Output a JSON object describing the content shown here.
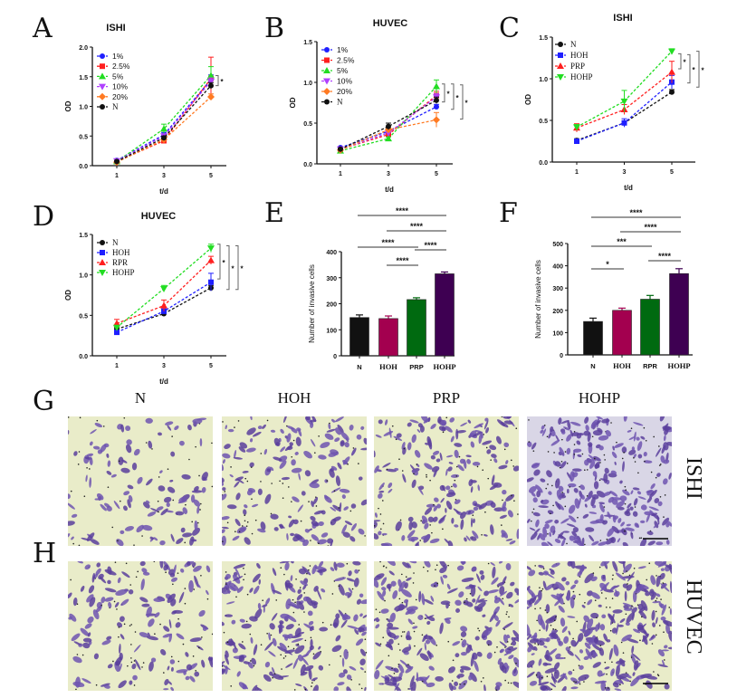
{
  "panels": {
    "A": "A",
    "B": "B",
    "C": "C",
    "D": "D",
    "E": "E",
    "F": "F",
    "G": "G",
    "H": "H"
  },
  "titles": {
    "A": "ISHI",
    "B": "HUVEC",
    "C": "ISHI",
    "D": "HUVEC"
  },
  "columns": [
    "N",
    "HOH",
    "PRP",
    "HOHP"
  ],
  "rows": [
    "ISHI",
    "HUVEC"
  ],
  "colors": {
    "blue": "#1f1fff",
    "red": "#ff1f1f",
    "green": "#22dd22",
    "violet": "#b040ff",
    "orange": "#ff7a22",
    "black": "#111111",
    "magenta": "#a3004f",
    "darkgreen": "#006a10",
    "purple": "#3e0052",
    "cellbg": "#e9ecc9",
    "stain": "#5b3f9c"
  },
  "chart_data": [
    {
      "id": "A",
      "type": "line",
      "title": "ISHI",
      "xlabel": "t/d",
      "ylabel": "OD",
      "ylim": [
        0,
        2.0
      ],
      "yticks": [
        "0.0",
        "0.5",
        "1.0",
        "1.5",
        "2.0"
      ],
      "x": [
        1,
        3,
        5
      ],
      "xticks": [
        "1",
        "3",
        "5"
      ],
      "legend": "top-left",
      "series": [
        {
          "name": "1%",
          "color": "#1f1fff",
          "marker": "circle",
          "values": [
            0.09,
            0.52,
            1.45
          ],
          "err": [
            0.02,
            0.04,
            0.08
          ]
        },
        {
          "name": "2.5%",
          "color": "#ff1f1f",
          "marker": "square",
          "values": [
            0.07,
            0.42,
            1.47
          ],
          "err": [
            0.01,
            0.03,
            0.36
          ]
        },
        {
          "name": "5%",
          "color": "#22dd22",
          "marker": "tri-up",
          "values": [
            0.07,
            0.62,
            1.52
          ],
          "err": [
            0.01,
            0.08,
            0.15
          ]
        },
        {
          "name": "10%",
          "color": "#b040ff",
          "marker": "tri-down",
          "values": [
            0.08,
            0.5,
            1.42
          ],
          "err": [
            0.01,
            0.03,
            0.06
          ]
        },
        {
          "name": "20%",
          "color": "#ff7a22",
          "marker": "diamond",
          "values": [
            0.06,
            0.44,
            1.16
          ],
          "err": [
            0.01,
            0.03,
            0.05
          ]
        },
        {
          "name": "N",
          "color": "#111111",
          "marker": "circle",
          "values": [
            0.07,
            0.47,
            1.35
          ],
          "err": [
            0.01,
            0.03,
            0.05
          ]
        }
      ],
      "annotations": [
        {
          "label": "*",
          "range": [
            1.35,
            1.52
          ]
        }
      ]
    },
    {
      "id": "B",
      "type": "line",
      "title": "HUVEC",
      "xlabel": "t/d",
      "ylabel": "OD",
      "ylim": [
        0,
        1.5
      ],
      "yticks": [
        "0.0",
        "0.5",
        "1.0",
        "1.5"
      ],
      "x": [
        1,
        3,
        5
      ],
      "xticks": [
        "1",
        "3",
        "5"
      ],
      "legend": "top-left",
      "series": [
        {
          "name": "1%",
          "color": "#1f1fff",
          "marker": "circle",
          "values": [
            0.2,
            0.4,
            0.7
          ],
          "err": [
            0.01,
            0.03,
            0.03
          ]
        },
        {
          "name": "2.5%",
          "color": "#ff1f1f",
          "marker": "square",
          "values": [
            0.18,
            0.36,
            0.84
          ],
          "err": [
            0.01,
            0.02,
            0.05
          ]
        },
        {
          "name": "5%",
          "color": "#22dd22",
          "marker": "tri-up",
          "values": [
            0.16,
            0.31,
            0.95
          ],
          "err": [
            0.01,
            0.02,
            0.08
          ]
        },
        {
          "name": "10%",
          "color": "#b040ff",
          "marker": "tri-down",
          "values": [
            0.18,
            0.38,
            0.82
          ],
          "err": [
            0.01,
            0.02,
            0.04
          ]
        },
        {
          "name": "20%",
          "color": "#ff7a22",
          "marker": "diamond",
          "values": [
            0.17,
            0.42,
            0.54
          ],
          "err": [
            0.01,
            0.02,
            0.09
          ]
        },
        {
          "name": "N",
          "color": "#111111",
          "marker": "circle",
          "values": [
            0.18,
            0.46,
            0.78
          ],
          "err": [
            0.01,
            0.04,
            0.04
          ]
        }
      ],
      "annotations": [
        {
          "label": "*",
          "range": [
            0.76,
            0.98
          ]
        },
        {
          "label": "*",
          "range": [
            0.67,
            0.98
          ]
        },
        {
          "label": "*",
          "range": [
            0.55,
            0.97
          ]
        }
      ]
    },
    {
      "id": "C",
      "type": "line",
      "title": "ISHI",
      "xlabel": "t/d",
      "ylabel": "OD",
      "ylim": [
        0,
        1.5
      ],
      "yticks": [
        "0.0",
        "0.5",
        "1.0",
        "1.5"
      ],
      "x": [
        1,
        3,
        5
      ],
      "xticks": [
        "1",
        "3",
        "5"
      ],
      "legend": "top-left",
      "series": [
        {
          "name": "N",
          "color": "#111111",
          "marker": "circle",
          "values": [
            0.26,
            0.47,
            0.84
          ],
          "err": [
            0.02,
            0.02,
            0.03
          ]
        },
        {
          "name": "HOH",
          "color": "#1f1fff",
          "marker": "square",
          "values": [
            0.25,
            0.47,
            0.96
          ],
          "err": [
            0.02,
            0.05,
            0.08
          ]
        },
        {
          "name": "PRP",
          "color": "#ff1f1f",
          "marker": "tri-up",
          "values": [
            0.41,
            0.63,
            1.08
          ],
          "err": [
            0.05,
            0.06,
            0.13
          ]
        },
        {
          "name": "HOHP",
          "color": "#22dd22",
          "marker": "tri-down",
          "values": [
            0.42,
            0.73,
            1.33
          ],
          "err": [
            0.03,
            0.13,
            0.03
          ]
        }
      ],
      "annotations": [
        {
          "label": "*",
          "range": [
            1.12,
            1.3
          ]
        },
        {
          "label": "*",
          "range": [
            0.95,
            1.29
          ]
        },
        {
          "label": "*",
          "range": [
            0.9,
            1.33
          ]
        }
      ]
    },
    {
      "id": "D",
      "type": "line",
      "title": "HUVEC",
      "xlabel": "t/d",
      "ylabel": "OD",
      "ylim": [
        0,
        1.5
      ],
      "yticks": [
        "0.0",
        "0.5",
        "1.0",
        "1.5"
      ],
      "x": [
        1,
        3,
        5
      ],
      "xticks": [
        "1",
        "3",
        "5"
      ],
      "legend": "top-left",
      "series": [
        {
          "name": "N",
          "color": "#111111",
          "marker": "circle",
          "values": [
            0.33,
            0.52,
            0.84
          ],
          "err": [
            0.02,
            0.02,
            0.03
          ]
        },
        {
          "name": "HOH",
          "color": "#1f1fff",
          "marker": "square",
          "values": [
            0.29,
            0.55,
            0.91
          ],
          "err": [
            0.02,
            0.03,
            0.11
          ]
        },
        {
          "name": "RPR",
          "color": "#ff1f1f",
          "marker": "tri-up",
          "values": [
            0.4,
            0.62,
            1.18
          ],
          "err": [
            0.05,
            0.07,
            0.05
          ]
        },
        {
          "name": "HOHP",
          "color": "#22dd22",
          "marker": "tri-down",
          "values": [
            0.35,
            0.83,
            1.33
          ],
          "err": [
            0.02,
            0.04,
            0.05
          ]
        }
      ],
      "annotations": [
        {
          "label": "*",
          "range": [
            0.95,
            1.38
          ]
        },
        {
          "label": "*",
          "range": [
            0.82,
            1.36
          ]
        },
        {
          "label": "*",
          "range": [
            0.82,
            1.36
          ]
        }
      ]
    },
    {
      "id": "E",
      "type": "bar",
      "ylabel": "Number of invasive cells",
      "ylim": [
        0,
        400
      ],
      "yticks": [
        "0",
        "100",
        "200",
        "300",
        "400"
      ],
      "categories": [
        "N",
        "HOH",
        "PRP",
        "HOHP"
      ],
      "values": [
        147,
        143,
        216,
        315
      ],
      "err": [
        10,
        10,
        7,
        7
      ],
      "colors": [
        "#111111",
        "#a3004f",
        "#006a10",
        "#3e0052"
      ],
      "significance": [
        {
          "pair": [
            0,
            3
          ],
          "label": "****"
        },
        {
          "pair": [
            1,
            3
          ],
          "label": "****"
        },
        {
          "pair": [
            0,
            2
          ],
          "label": "****"
        },
        {
          "pair": [
            2,
            3
          ],
          "label": "****"
        },
        {
          "pair": [
            1,
            2
          ],
          "label": "****"
        }
      ]
    },
    {
      "id": "F",
      "type": "bar",
      "ylabel": "Number of invasive cells",
      "ylim": [
        0,
        500
      ],
      "yticks": [
        "0",
        "100",
        "200",
        "300",
        "400",
        "500"
      ],
      "categories": [
        "N",
        "HOH",
        "RPR",
        "HOHP"
      ],
      "values": [
        150,
        200,
        250,
        365
      ],
      "err": [
        15,
        10,
        17,
        22
      ],
      "colors": [
        "#111111",
        "#a3004f",
        "#006a10",
        "#3e0052"
      ],
      "significance": [
        {
          "pair": [
            0,
            3
          ],
          "label": "****"
        },
        {
          "pair": [
            1,
            3
          ],
          "label": "****"
        },
        {
          "pair": [
            0,
            2
          ],
          "label": "***"
        },
        {
          "pair": [
            2,
            3
          ],
          "label": "****"
        },
        {
          "pair": [
            0,
            1
          ],
          "label": "*"
        }
      ]
    }
  ]
}
